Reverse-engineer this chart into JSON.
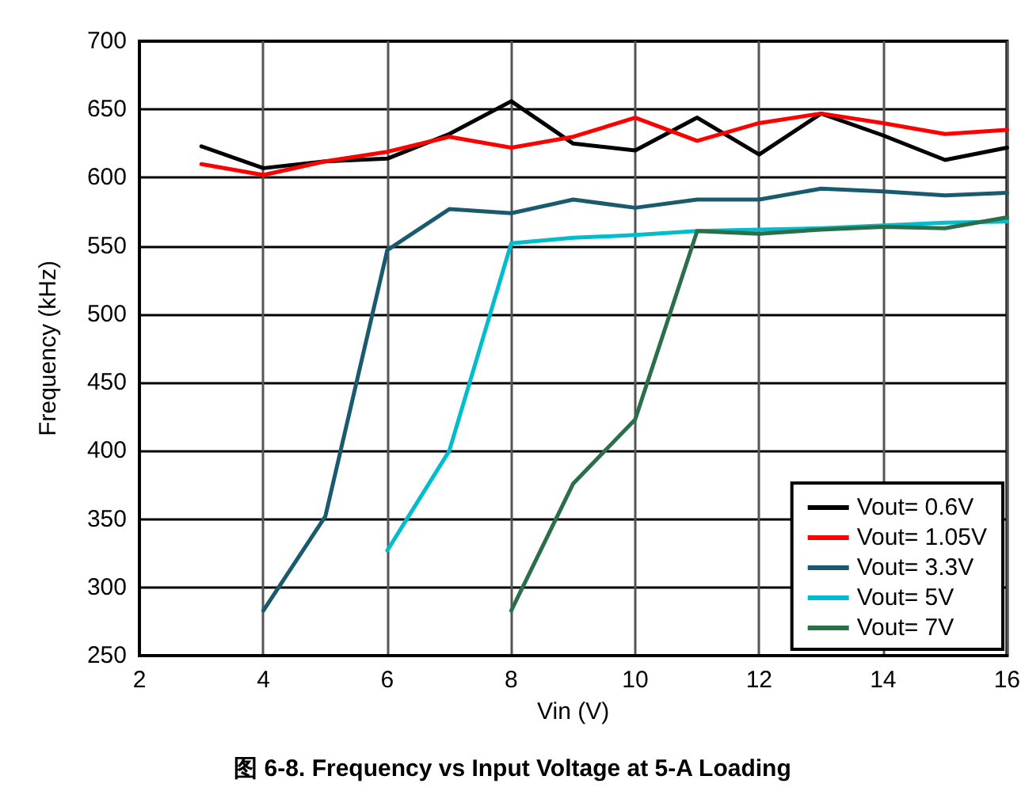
{
  "chart_data": {
    "type": "line",
    "title": "图 6-8. Frequency vs Input Voltage at 5-A Loading",
    "xlabel": "Vin (V)",
    "ylabel": "Frequency (kHz)",
    "xlim": [
      2,
      16
    ],
    "xticks": [
      2,
      4,
      6,
      8,
      10,
      12,
      14,
      16
    ],
    "ylim": [
      250,
      700
    ],
    "yticks": [
      250,
      300,
      350,
      400,
      450,
      500,
      550,
      600,
      650,
      700
    ],
    "grid": true,
    "legend": "bottom right",
    "marker": "none",
    "line_style": "solid",
    "series": [
      {
        "name": "Vout= 0.6V",
        "color": "#000000",
        "x": [
          3,
          4,
          5,
          6,
          7,
          8,
          9,
          10,
          11,
          12,
          13,
          14,
          15,
          16
        ],
        "values": [
          623,
          607,
          612,
          614,
          632,
          656,
          625,
          620,
          644,
          617,
          647,
          631,
          613,
          622
        ]
      },
      {
        "name": "Vout= 1.05V",
        "color": "#ff0000",
        "x": [
          3,
          4,
          5,
          6,
          7,
          8,
          9,
          10,
          11,
          12,
          13,
          14,
          15,
          16
        ],
        "values": [
          610,
          602,
          612,
          619,
          630,
          622,
          630,
          644,
          627,
          640,
          647,
          640,
          632,
          635
        ]
      },
      {
        "name": "Vout= 3.3V",
        "color": "#1a5a6e",
        "x": [
          4,
          5,
          6,
          7,
          8,
          9,
          10,
          11,
          12,
          13,
          14,
          15,
          16
        ],
        "values": [
          283,
          352,
          547,
          577,
          574,
          584,
          578,
          584,
          584,
          592,
          590,
          587,
          589
        ]
      },
      {
        "name": "Vout= 5V",
        "color": "#00bccc",
        "x": [
          6,
          7,
          8,
          9,
          10,
          11,
          12,
          13,
          14,
          15,
          16
        ],
        "values": [
          327,
          400,
          552,
          556,
          558,
          561,
          562,
          563,
          565,
          567,
          568
        ]
      },
      {
        "name": "Vout= 7V",
        "color": "#2a6e4a",
        "x": [
          8,
          9,
          10,
          11,
          12,
          13,
          14,
          15,
          16
        ],
        "values": [
          283,
          376,
          423,
          561,
          559,
          562,
          564,
          563,
          571
        ]
      }
    ]
  }
}
